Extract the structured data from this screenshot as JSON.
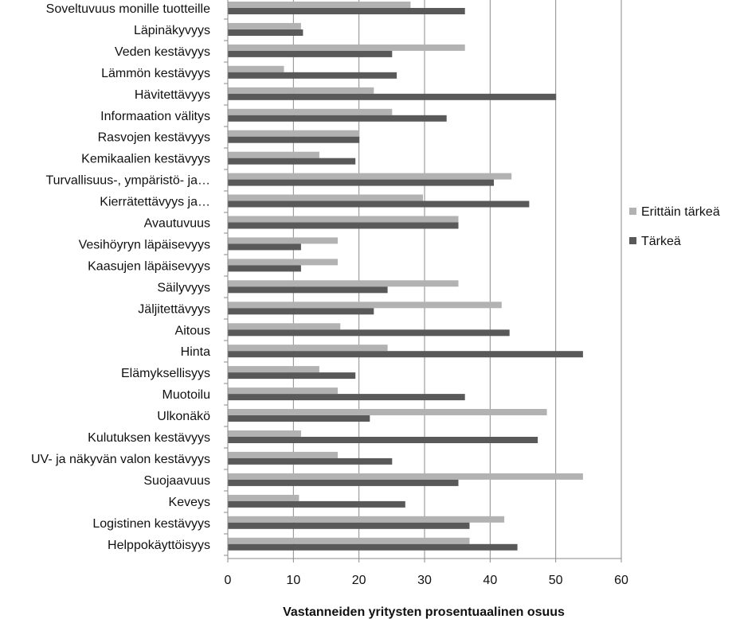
{
  "chart_data": {
    "type": "bar",
    "orientation": "horizontal",
    "title": "",
    "xlabel": "Vastanneiden yritysten prosentuaalinen osuus",
    "ylabel": "",
    "xlim": [
      0,
      60
    ],
    "xticks": [
      0,
      10,
      20,
      30,
      40,
      50,
      60
    ],
    "grid": "vertical",
    "legend_position": "right",
    "categories": [
      "Soveltuvuus monille tuotteille",
      "Läpinäkyvyys",
      "Veden kestävyys",
      "Lämmön kestävyys",
      "Hävitettävyys",
      "Informaation välitys",
      "Rasvojen kestävyys",
      "Kemikaalien kestävyys",
      "Turvallisuus-, ympäristö- ja…",
      "Kierrätettävyys ja…",
      "Avautuvuus",
      "Vesihöyryn läpäisevyys",
      "Kaasujen läpäisevyys",
      "Säilyvyys",
      "Jäljitettävyys",
      "Aitous",
      "Hinta",
      "Elämyksellisyys",
      "Muotoilu",
      "Ulkonäkö",
      "Kulutuksen kestävyys",
      "UV- ja näkyvän valon kestävyys",
      "Suojaavuus",
      "Keveys",
      "Logistinen kestävyys",
      "Helppokäyttöisyys"
    ],
    "series": [
      {
        "name": "Erittäin tärkeä",
        "color": "#b2b2b2",
        "values": [
          27.8,
          11.1,
          36.1,
          8.5,
          22.2,
          25.0,
          20.0,
          13.9,
          43.2,
          29.7,
          35.1,
          16.7,
          16.7,
          35.1,
          41.7,
          17.1,
          24.3,
          13.9,
          16.7,
          48.6,
          11.1,
          16.7,
          54.1,
          10.8,
          42.1,
          36.8
        ]
      },
      {
        "name": "Tärkeä",
        "color": "#595959",
        "values": [
          36.1,
          11.4,
          25.0,
          25.7,
          50.0,
          33.3,
          20.0,
          19.4,
          40.5,
          45.9,
          35.1,
          11.1,
          11.1,
          24.3,
          22.2,
          42.9,
          54.1,
          19.4,
          36.1,
          21.6,
          47.2,
          25.0,
          35.1,
          27.0,
          36.8,
          44.1
        ]
      }
    ]
  }
}
